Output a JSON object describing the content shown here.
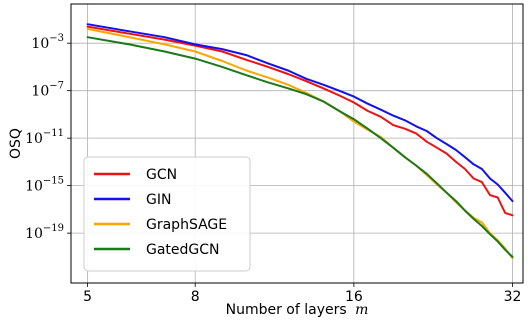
{
  "chart_data": {
    "type": "line",
    "xlabel": "Number of layers",
    "xlabel_var": "m",
    "ylabel": "OSQ",
    "xscale": "log2",
    "yscale": "log",
    "xlim": [
      4.65,
      33.5
    ],
    "ylim_log10": [
      -23.2,
      0.3
    ],
    "xticks": [
      5,
      8,
      16,
      32
    ],
    "xtick_labels": [
      "5",
      "8",
      "16",
      "32"
    ],
    "yticks_log10": [
      -3,
      -7,
      -11,
      -15,
      -19
    ],
    "ytick_labels": [
      {
        "base": "10",
        "exp": "−3"
      },
      {
        "base": "10",
        "exp": "−7"
      },
      {
        "base": "10",
        "exp": "−11"
      },
      {
        "base": "10",
        "exp": "−15"
      },
      {
        "base": "10",
        "exp": "−19"
      }
    ],
    "grid": true,
    "legend_position": "lower-left",
    "x": [
      5,
      6,
      7,
      8,
      9,
      10,
      11,
      12,
      13,
      14,
      15,
      16,
      17,
      18,
      19,
      20,
      21,
      22,
      23,
      24,
      25,
      26,
      27,
      28,
      29,
      30,
      31,
      32
    ],
    "series": [
      {
        "name": "GCN",
        "color": "#ee1111",
        "log10_values": [
          -1.6,
          -2.2,
          -2.7,
          -3.2,
          -3.7,
          -4.4,
          -5.0,
          -5.6,
          -6.2,
          -6.8,
          -7.4,
          -8.0,
          -8.7,
          -9.2,
          -9.9,
          -10.2,
          -10.6,
          -11.3,
          -11.8,
          -12.3,
          -13.0,
          -13.6,
          -14.4,
          -14.7,
          -15.8,
          -16.0,
          -17.3,
          -17.5
        ]
      },
      {
        "name": "GIN",
        "color": "#1111ee",
        "log10_values": [
          -1.4,
          -2.0,
          -2.5,
          -3.1,
          -3.5,
          -4.0,
          -4.7,
          -5.3,
          -6.0,
          -6.5,
          -7.0,
          -7.5,
          -8.1,
          -8.6,
          -9.1,
          -9.5,
          -10.0,
          -10.4,
          -11.0,
          -11.5,
          -12.0,
          -12.6,
          -13.2,
          -13.6,
          -14.4,
          -14.9,
          -15.6,
          -16.3
        ]
      },
      {
        "name": "GraphSAGE",
        "color": "#ffa500",
        "log10_values": [
          -1.8,
          -2.5,
          -3.1,
          -3.7,
          -4.5,
          -5.3,
          -5.9,
          -6.5,
          -7.2,
          -7.9,
          -8.7,
          -9.6,
          -10.3,
          -10.9,
          -11.8,
          -12.6,
          -13.3,
          -14.1,
          -14.9,
          -15.6,
          -16.4,
          -17.1,
          -17.7,
          -18.1,
          -19.0,
          -19.6,
          -20.3,
          -21.1
        ]
      },
      {
        "name": "GatedGCN",
        "color": "#1a7a1a",
        "log10_values": [
          -2.5,
          -3.1,
          -3.7,
          -4.3,
          -5.0,
          -5.7,
          -6.3,
          -6.8,
          -7.3,
          -7.9,
          -8.7,
          -9.4,
          -10.2,
          -11.0,
          -11.8,
          -12.6,
          -13.3,
          -14.0,
          -14.8,
          -15.6,
          -16.3,
          -17.1,
          -17.8,
          -18.4,
          -19.1,
          -19.7,
          -20.4,
          -21.0
        ]
      }
    ]
  }
}
